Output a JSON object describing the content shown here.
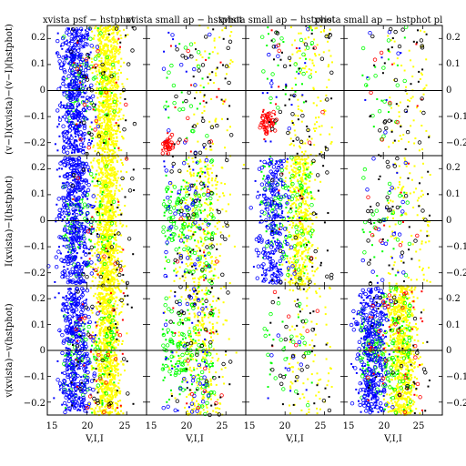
{
  "figure": {
    "panel_titles": [
      "xvista psf − hstphot",
      "xvista small ap − hstphot",
      "xvista small ap − hstphot",
      "xvista small ap − hstphot pl"
    ],
    "x_axis_label": "V,I,I",
    "row_labels": [
      "(v−I)(xvista)−(v−I)(hstphot)",
      "I(xvista)−I(hstphot)",
      "v(xvista)−v(hstphot)"
    ],
    "x_ticks": [
      "15",
      "20",
      "25"
    ],
    "y_ticks": [
      "0.2",
      "0.1",
      "0",
      "−0.1",
      "−0.2"
    ],
    "colors": {
      "yellow": "#ffff00",
      "blue": "#0000ff",
      "green": "#00ff00",
      "red": "#ff0000",
      "black": "#000000"
    }
  },
  "chart_data": {
    "type": "scatter",
    "grid": false,
    "layout": "3 rows x 4 columns of small-multiple panels",
    "xlim": [
      15,
      27.5
    ],
    "ylim": [
      -0.25,
      0.25
    ],
    "xlabel": "V,I,I",
    "reference_line_y": 0,
    "rows": [
      {
        "ylabel": "(v−I)(xvista)−(v−I)(hstphot)"
      },
      {
        "ylabel": "I(xvista)−I(hstphot)"
      },
      {
        "ylabel": "v(xvista)−v(hstphot)"
      }
    ],
    "columns": [
      {
        "title": "xvista psf − hstphot"
      },
      {
        "title": "xvista small ap − hstphot"
      },
      {
        "title": "xvista small ap − hstphot"
      },
      {
        "title": "xvista small ap − hstphot pl"
      }
    ],
    "series": [
      {
        "color": "yellow",
        "description": "dense faint-star cloud",
        "x_range": [
          20.5,
          25.5
        ],
        "x_mean": 22.5
      },
      {
        "color": "blue",
        "description": "brighter stars",
        "x_range": [
          16,
          21
        ],
        "x_mean": 18.5
      },
      {
        "color": "green",
        "description": "intermediate stars",
        "x_range": [
          17,
          23
        ],
        "x_mean": 20.5
      },
      {
        "color": "red",
        "description": "sparse points; cluster near x≈17.5, y≈−0.13 in row 1 column 3",
        "x_range": [
          17,
          25
        ],
        "x_mean": 21
      },
      {
        "color": "black",
        "description": "sparse outliers",
        "x_range": [
          17,
          26
        ],
        "x_mean": 22
      }
    ],
    "panels": [
      {
        "row": 0,
        "col": 0,
        "yellow": 900,
        "blue": 450,
        "green": 100,
        "red": 25,
        "black": 40,
        "yellow_center": 22.6,
        "yellow_width": 1.2
      },
      {
        "row": 0,
        "col": 1,
        "yellow": 60,
        "blue": 18,
        "green": 30,
        "red": 15,
        "black": 45,
        "red_cluster": {
          "x": 17.6,
          "y": -0.215,
          "n": 40
        }
      },
      {
        "row": 0,
        "col": 2,
        "yellow": 120,
        "blue": 20,
        "green": 40,
        "red": 10,
        "black": 50,
        "yellow_top": true,
        "red_cluster": {
          "x": 17.7,
          "y": -0.12,
          "n": 60
        }
      },
      {
        "row": 0,
        "col": 3,
        "yellow": 60,
        "blue": 10,
        "green": 30,
        "red": 10,
        "black": 45
      },
      {
        "row": 1,
        "col": 0,
        "yellow": 900,
        "blue": 450,
        "green": 120,
        "red": 15,
        "black": 40,
        "yellow_center": 22.6,
        "yellow_width": 1.2
      },
      {
        "row": 1,
        "col": 1,
        "yellow": 320,
        "blue": 60,
        "green": 180,
        "red": 8,
        "black": 45,
        "yellow_center": 21.8,
        "yellow_width": 2.2
      },
      {
        "row": 1,
        "col": 2,
        "yellow": 520,
        "blue": 260,
        "green": 140,
        "red": 8,
        "black": 35,
        "yellow_center": 22.0,
        "yellow_width": 1.2,
        "yellow_top": true
      },
      {
        "row": 1,
        "col": 3,
        "yellow": 100,
        "blue": 25,
        "green": 40,
        "red": 10,
        "black": 45
      },
      {
        "row": 2,
        "col": 0,
        "yellow": 900,
        "blue": 420,
        "green": 120,
        "red": 35,
        "black": 40,
        "yellow_center": 22.6,
        "yellow_width": 1.2
      },
      {
        "row": 2,
        "col": 1,
        "yellow": 320,
        "blue": 50,
        "green": 180,
        "red": 15,
        "black": 45,
        "yellow_center": 21.8,
        "yellow_width": 2.2
      },
      {
        "row": 2,
        "col": 2,
        "yellow": 90,
        "blue": 10,
        "green": 40,
        "red": 6,
        "black": 40
      },
      {
        "row": 2,
        "col": 3,
        "yellow": 800,
        "blue": 380,
        "green": 220,
        "red": 50,
        "black": 35,
        "yellow_center": 22.4,
        "yellow_width": 1.3
      }
    ]
  }
}
